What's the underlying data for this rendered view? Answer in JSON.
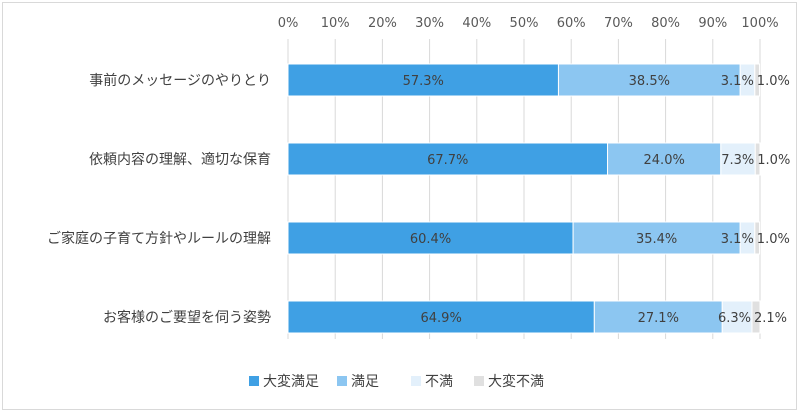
{
  "chart_data": {
    "type": "bar",
    "stacked": "percent",
    "orientation": "horizontal",
    "title": "",
    "xlabel": "",
    "ylabel": "",
    "xlim": [
      0,
      100
    ],
    "x_ticks": [
      "0%",
      "10%",
      "20%",
      "30%",
      "40%",
      "50%",
      "60%",
      "70%",
      "80%",
      "90%",
      "100%"
    ],
    "grid": "vertical",
    "legend_position": "bottom",
    "categories": [
      "事前のメッセージのやりとり",
      "依頼内容の理解、適切な保育",
      "ご家庭の子育て方針やルールの理解",
      "お客様のご要望を伺う姿勢"
    ],
    "series": [
      {
        "name": "大変満足",
        "color": "#3fa0e4",
        "values": [
          57.3,
          67.7,
          60.4,
          64.9
        ],
        "labels": [
          "57.3%",
          "67.7%",
          "60.4%",
          "64.9%"
        ]
      },
      {
        "name": "満足",
        "color": "#8cc6f1",
        "values": [
          38.5,
          24.0,
          35.4,
          27.1
        ],
        "labels": [
          "38.5%",
          "24.0%",
          "35.4%",
          "27.1%"
        ]
      },
      {
        "name": "不満",
        "color": "#e3f0fb",
        "values": [
          3.1,
          7.3,
          3.1,
          6.3
        ],
        "labels": [
          "3.1%",
          "7.3%",
          "3.1%",
          "6.3%"
        ]
      },
      {
        "name": "大変不満",
        "color": "#e0e0e0",
        "values": [
          1.0,
          1.0,
          1.0,
          2.1
        ],
        "labels": [
          "1.0%",
          "1.0%",
          "1.0%",
          "2.1%"
        ]
      }
    ]
  }
}
